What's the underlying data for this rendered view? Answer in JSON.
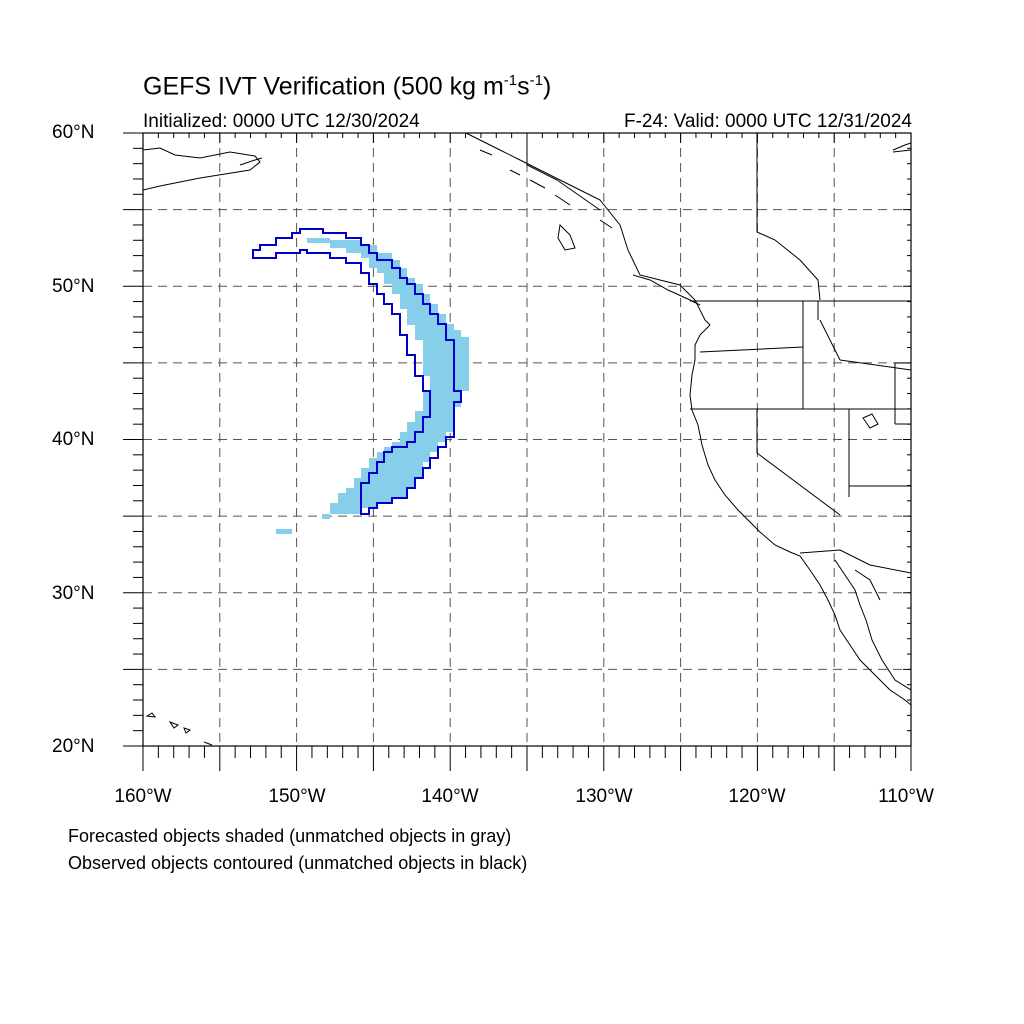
{
  "title": {
    "main": "GEFS IVT Verification (500 kg m",
    "exp1": "-1",
    "mid": "s",
    "exp2": "-1",
    "end": ")"
  },
  "initialized": "Initialized: 0000 UTC 12/30/2024",
  "valid": "F-24: Valid: 0000 UTC 12/31/2024",
  "lat_labels": [
    "60°N",
    "50°N",
    "40°N",
    "30°N",
    "20°N"
  ],
  "lon_labels": [
    "160°W",
    "150°W",
    "140°W",
    "130°W",
    "120°W",
    "110°W"
  ],
  "notes": {
    "forecast": "Forecasted objects shaded (unmatched objects in gray)",
    "observed": "Observed objects contoured (unmatched objects in black)"
  },
  "map": {
    "extent": {
      "lon_min": -160,
      "lon_max": -110,
      "lat_min": 20,
      "lat_max": 60
    },
    "grid_interval_deg": 5,
    "forecast_color": "#87CEEB",
    "observed_color": "#0000CC"
  }
}
